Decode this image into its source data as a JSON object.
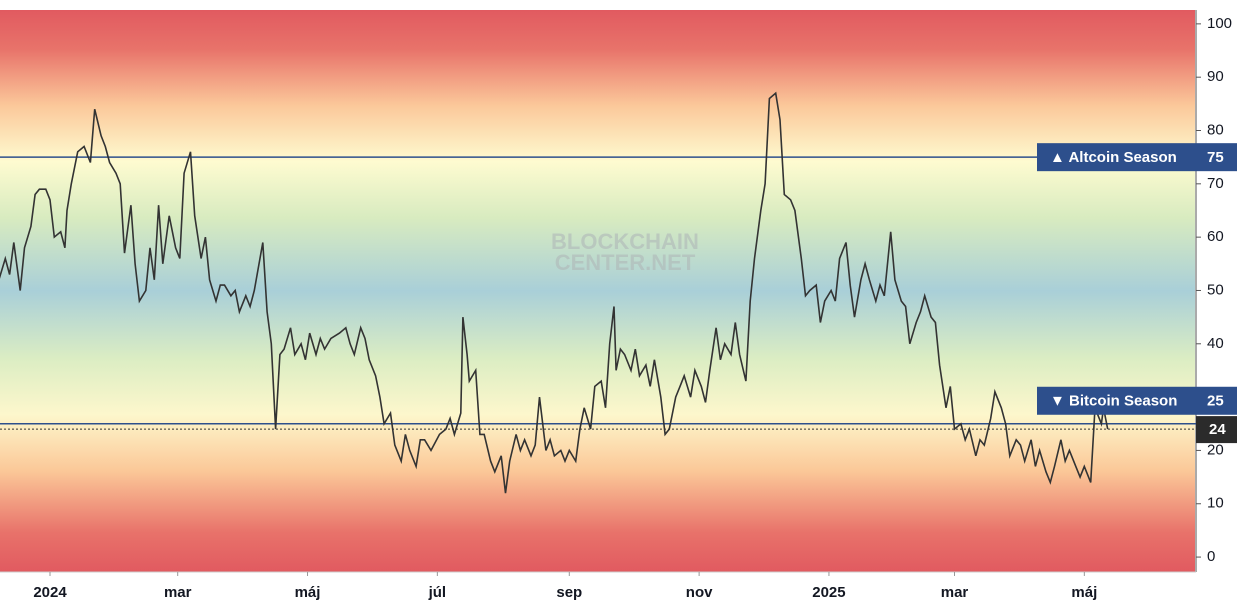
{
  "chart_data": {
    "type": "line",
    "x": [
      -24,
      -21,
      -19,
      -17,
      -14,
      -12,
      -9,
      -7,
      -5,
      -2,
      0,
      2,
      5,
      7,
      8,
      10,
      13,
      16,
      19,
      21,
      24,
      26,
      28,
      31,
      33,
      35,
      38,
      40,
      42,
      45,
      47,
      49,
      51,
      53,
      56,
      59,
      61,
      63,
      66,
      68,
      71,
      73,
      75,
      78,
      80,
      82,
      85,
      87,
      89,
      92,
      94,
      96,
      100,
      102,
      104,
      106,
      108,
      110,
      113,
      115,
      118,
      120,
      122,
      125,
      127,
      129,
      132,
      136,
      139,
      141,
      143,
      146,
      148,
      150,
      153,
      155,
      157,
      160,
      162,
      165,
      167,
      169,
      172,
      174,
      176,
      179,
      183,
      186,
      188,
      190,
      193,
      194,
      196,
      197,
      200,
      202,
      204,
      207,
      209,
      212,
      214,
      216,
      219,
      221,
      223,
      226,
      228,
      230,
      233,
      235,
      237,
      240,
      242,
      244,
      247,
      249,
      251,
      254,
      256,
      259,
      261,
      263,
      265,
      266,
      268,
      270,
      273,
      275,
      277,
      280,
      282,
      284,
      287,
      289,
      291,
      294,
      296,
      298,
      301,
      303,
      306,
      308,
      310,
      313,
      315,
      317,
      320,
      322,
      324,
      327,
      329,
      331,
      334,
      336,
      338,
      341,
      343,
      345,
      348,
      350,
      353,
      355,
      357,
      360,
      362,
      364,
      367,
      369,
      371,
      374,
      376,
      378,
      381,
      383,
      385,
      388,
      390,
      392,
      395,
      397,
      400,
      402,
      404,
      407,
      409,
      411,
      414,
      416,
      418,
      421,
      423,
      425,
      428,
      430,
      432,
      435,
      437,
      439,
      442,
      444,
      447,
      449,
      451,
      454,
      456,
      458,
      461,
      463,
      465,
      468,
      470,
      472,
      475,
      477,
      479,
      482,
      484,
      486,
      489,
      491,
      494,
      495,
      497
    ],
    "values": [
      52,
      56,
      53,
      59,
      50,
      58,
      62,
      68,
      69,
      69,
      67,
      60,
      61,
      58,
      65,
      70,
      76,
      77,
      74,
      84,
      79,
      77,
      74,
      72,
      70,
      57,
      66,
      55,
      48,
      50,
      58,
      52,
      66,
      55,
      64,
      58,
      56,
      72,
      76,
      64,
      56,
      60,
      52,
      48,
      51,
      51,
      49,
      50,
      46,
      49,
      47,
      50,
      59,
      46,
      40,
      24,
      38,
      39,
      43,
      38,
      40,
      37,
      42,
      38,
      41,
      39,
      41,
      42,
      43,
      40,
      38,
      43,
      41,
      37,
      34,
      30,
      25,
      27,
      21,
      18,
      23,
      20,
      17,
      22,
      22,
      20,
      23,
      24,
      26,
      23,
      27,
      45,
      38,
      33,
      35,
      23,
      23,
      18,
      16,
      19,
      12,
      18,
      23,
      20,
      22,
      19,
      21,
      30,
      20,
      22,
      19,
      20,
      18,
      20,
      18,
      24,
      28,
      24,
      32,
      33,
      28,
      40,
      47,
      35,
      39,
      38,
      35,
      39,
      34,
      36,
      32,
      37,
      30,
      23,
      24,
      30,
      32,
      34,
      30,
      35,
      32,
      29,
      35,
      43,
      37,
      40,
      38,
      44,
      38,
      33,
      48,
      56,
      65,
      70,
      86,
      87,
      82,
      68,
      67,
      65,
      56,
      49,
      50,
      51,
      44,
      48,
      50,
      48,
      56,
      59,
      51,
      45,
      52,
      55,
      52,
      48,
      51,
      49,
      61,
      52,
      48,
      47,
      40,
      44,
      46,
      49,
      45,
      44,
      36,
      28,
      32,
      24,
      25,
      22,
      24,
      19,
      22,
      21,
      26,
      31,
      28,
      25,
      19,
      22,
      21,
      18,
      22,
      17,
      20,
      16,
      14,
      17,
      22,
      18,
      20,
      17,
      15,
      17,
      14,
      28,
      25,
      28,
      24
    ],
    "color": "#333333",
    "xlim": [
      -23.5,
      538
    ],
    "xticks": [
      {
        "value": 0,
        "label": "2024"
      },
      {
        "value": 60,
        "label": "mar"
      },
      {
        "value": 121,
        "label": "máj"
      },
      {
        "value": 182,
        "label": "júl"
      },
      {
        "value": 244,
        "label": "sep"
      },
      {
        "value": 305,
        "label": "nov"
      },
      {
        "value": 366,
        "label": "2025"
      },
      {
        "value": 425,
        "label": "mar"
      },
      {
        "value": 486,
        "label": "máj"
      }
    ],
    "ylim": [
      -2.8,
      102.6
    ],
    "yticks": [
      0,
      10,
      20,
      30,
      40,
      50,
      60,
      70,
      80,
      90,
      100
    ],
    "reference_lines": [
      {
        "label": "▲ Altcoin Season",
        "value": 75,
        "color": "#2d4f8c"
      },
      {
        "label": "▼ Bitcoin Season",
        "value": 25,
        "color": "#2d4f8c"
      }
    ],
    "last_value": 24,
    "watermark": [
      "BLOCKCHAIN",
      "CENTER.NET"
    ]
  }
}
